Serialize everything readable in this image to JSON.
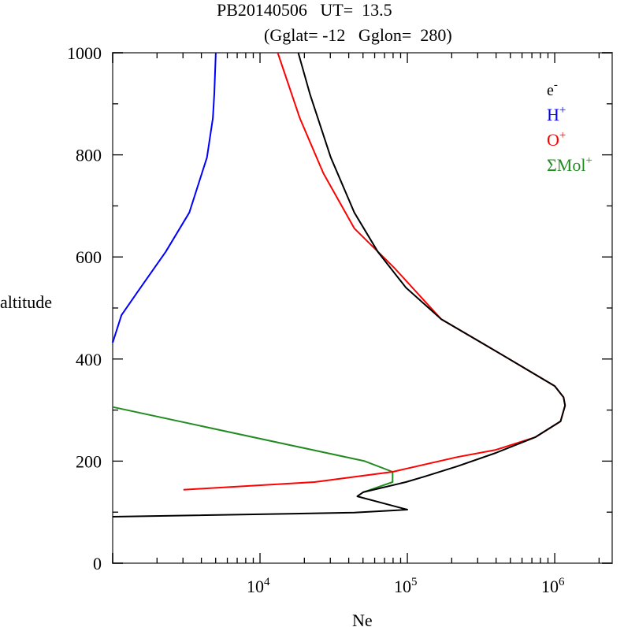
{
  "chart_data": {
    "type": "line",
    "title_line1": "PB20140506   UT=  13.5",
    "title_line2": "(Gglat= -12   Gglon=  280)",
    "xlabel": "Ne",
    "ylabel": "altitude",
    "xscale": "log",
    "xlim_log10": [
      3.0,
      6.39
    ],
    "ylim": [
      0,
      1000
    ],
    "yticks": [
      "0",
      "200",
      "400",
      "600",
      "800",
      "1000"
    ],
    "xticks": [
      {
        "base": "10",
        "exp": "4"
      },
      {
        "base": "10",
        "exp": "5"
      },
      {
        "base": "10",
        "exp": "6"
      }
    ],
    "legend_position": "top-right",
    "series": [
      {
        "name": "e-",
        "label_main": "e",
        "label_sup": "-",
        "color": "#000000",
        "points_log10Ne_alt": [
          [
            4.26,
            1000
          ],
          [
            4.34,
            918
          ],
          [
            4.48,
            795
          ],
          [
            4.64,
            687
          ],
          [
            4.8,
            610
          ],
          [
            4.99,
            540
          ],
          [
            5.23,
            478
          ],
          [
            5.55,
            424
          ],
          [
            5.82,
            378
          ],
          [
            6.0,
            347
          ],
          [
            6.06,
            325
          ],
          [
            6.07,
            309
          ],
          [
            6.04,
            278
          ],
          [
            5.87,
            247
          ],
          [
            5.6,
            216
          ],
          [
            5.34,
            190
          ],
          [
            5.12,
            170
          ],
          [
            4.99,
            159
          ],
          [
            4.7,
            139
          ],
          [
            4.66,
            131
          ],
          [
            4.7,
            128
          ],
          [
            5.0,
            105
          ],
          [
            4.64,
            99
          ],
          [
            3.0,
            91
          ]
        ]
      },
      {
        "name": "H+",
        "label_main": "H",
        "label_sup": "+",
        "color": "#0000ff",
        "points_log10Ne_alt": [
          [
            3.7,
            1000
          ],
          [
            3.69,
            920
          ],
          [
            3.68,
            872
          ],
          [
            3.64,
            795
          ],
          [
            3.52,
            687
          ],
          [
            3.36,
            610
          ],
          [
            3.17,
            532
          ],
          [
            3.06,
            486
          ],
          [
            3.0,
            432
          ]
        ]
      },
      {
        "name": "O+",
        "label_main": "O",
        "label_sup": "+",
        "color": "#ff0000",
        "points_log10Ne_alt": [
          [
            4.12,
            1000
          ],
          [
            4.27,
            872
          ],
          [
            4.43,
            764
          ],
          [
            4.64,
            656
          ],
          [
            4.91,
            579
          ],
          [
            5.23,
            478
          ],
          [
            5.55,
            424
          ],
          [
            5.82,
            378
          ],
          [
            6.0,
            347
          ],
          [
            6.06,
            325
          ],
          [
            6.07,
            309
          ],
          [
            6.04,
            278
          ],
          [
            5.87,
            247
          ],
          [
            5.6,
            222
          ],
          [
            5.34,
            208
          ],
          [
            4.9,
            179
          ],
          [
            4.37,
            159
          ],
          [
            3.48,
            144
          ]
        ]
      },
      {
        "name": "ΣMol+",
        "label_main": "ΣMol",
        "label_sup": "+",
        "color": "#228b22",
        "points_log10Ne_alt": [
          [
            3.0,
            306
          ],
          [
            4.71,
            200
          ],
          [
            4.9,
            179
          ],
          [
            4.9,
            159
          ],
          [
            4.7,
            139
          ]
        ]
      }
    ]
  }
}
